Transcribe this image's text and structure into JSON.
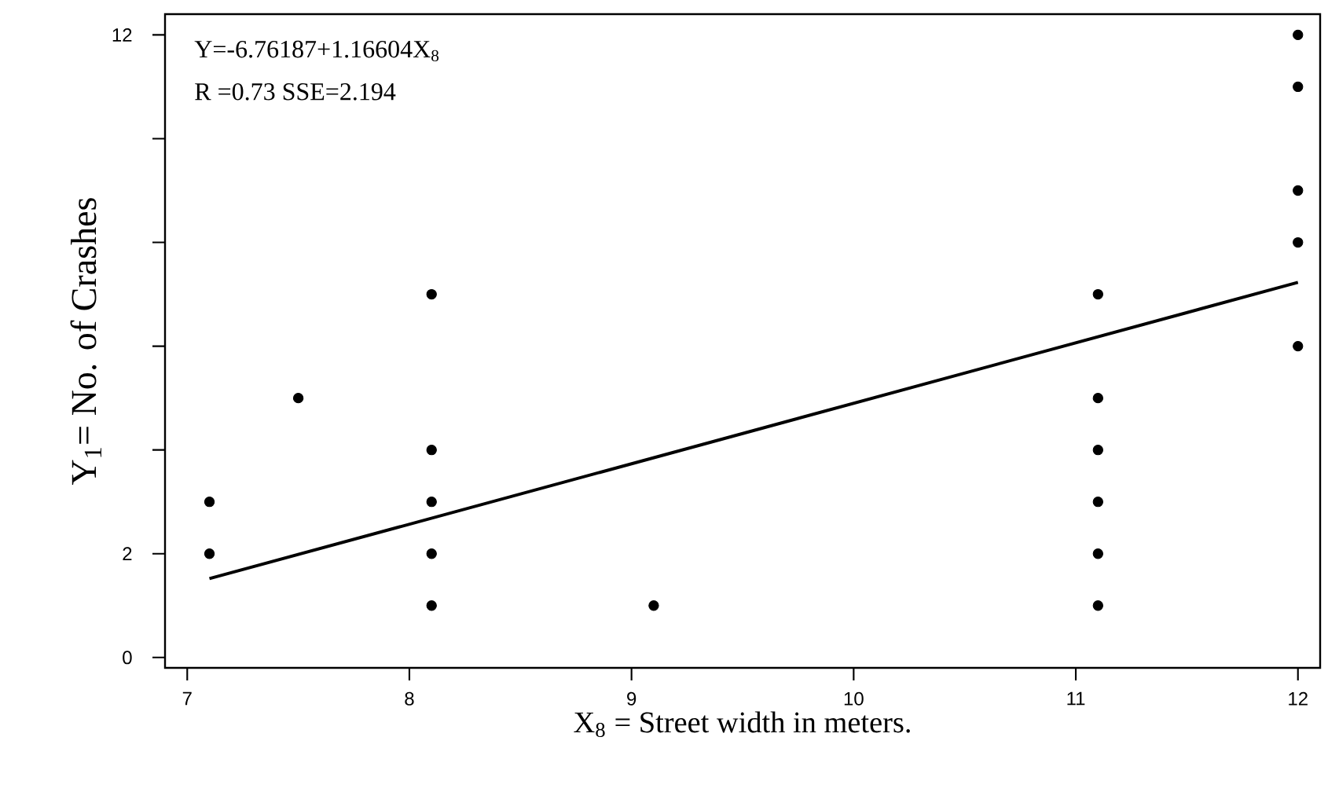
{
  "chart_data": {
    "type": "scatter",
    "xlabel": "X$_{8}$ = Street width in meters.",
    "ylabel": "Y$_{1}$= No. of Crashes",
    "annotations": [
      "Y=-6.76187+1.16604X$_{8}$",
      "R =0.73  SSE=2.194"
    ],
    "xlim": [
      6.9,
      12.1
    ],
    "ylim": [
      -0.2,
      12.4
    ],
    "xticks": [
      7,
      8,
      9,
      10,
      11,
      12
    ],
    "yticks": [
      0,
      2,
      {
        "value": 4,
        "label": null
      },
      {
        "value": 6,
        "label": null
      },
      {
        "value": 8,
        "label": null
      },
      {
        "value": 10,
        "label": null
      },
      12
    ],
    "series": [
      {
        "marker": "circle",
        "color": "#000000",
        "x": [
          7.1,
          7.1,
          7.5,
          8.1,
          8.1,
          8.1,
          8.1,
          8.1,
          9.1,
          11.1,
          11.1,
          11.1,
          11.1,
          11.1,
          11.1,
          12,
          12,
          12,
          12,
          12
        ],
        "values": [
          3,
          2,
          5,
          7,
          4,
          3,
          2,
          1,
          1,
          7,
          5,
          4,
          3,
          2,
          1,
          12,
          11,
          9,
          8,
          6
        ]
      },
      {
        "type": "line",
        "color": "#000000",
        "x": [
          7.1,
          12
        ],
        "values": [
          1.52,
          7.23
        ]
      }
    ]
  }
}
